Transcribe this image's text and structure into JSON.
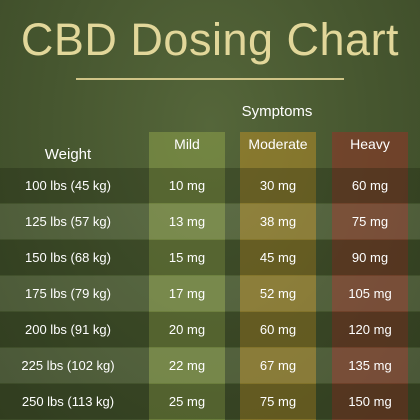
{
  "title": "CBD Dosing Chart",
  "symptoms_label": "Symptoms",
  "headers": {
    "weight": "Weight",
    "mild": "Mild",
    "moderate": "Moderate",
    "heavy": "Heavy"
  },
  "rows": [
    {
      "weight": "100 lbs (45 kg)",
      "mild": "10 mg",
      "moderate": "30 mg",
      "heavy": "60 mg"
    },
    {
      "weight": "125 lbs (57 kg)",
      "mild": "13 mg",
      "moderate": "38 mg",
      "heavy": "75 mg"
    },
    {
      "weight": "150 lbs (68 kg)",
      "mild": "15 mg",
      "moderate": "45 mg",
      "heavy": "90 mg"
    },
    {
      "weight": "175 lbs (79 kg)",
      "mild": "17 mg",
      "moderate": "52 mg",
      "heavy": "105 mg"
    },
    {
      "weight": "200 lbs (91 kg)",
      "mild": "20 mg",
      "moderate": "60 mg",
      "heavy": "120 mg"
    },
    {
      "weight": "225 lbs (102 kg)",
      "mild": "22 mg",
      "moderate": "67 mg",
      "heavy": "135 mg"
    },
    {
      "weight": "250 lbs (113 kg)",
      "mild": "25 mg",
      "moderate": "75 mg",
      "heavy": "150 mg"
    }
  ],
  "colors": {
    "background": "#4a5a32",
    "title": "#e2d79a",
    "mild": "#8ca04b",
    "moderate": "#b48c28",
    "heavy": "#8c3728"
  }
}
